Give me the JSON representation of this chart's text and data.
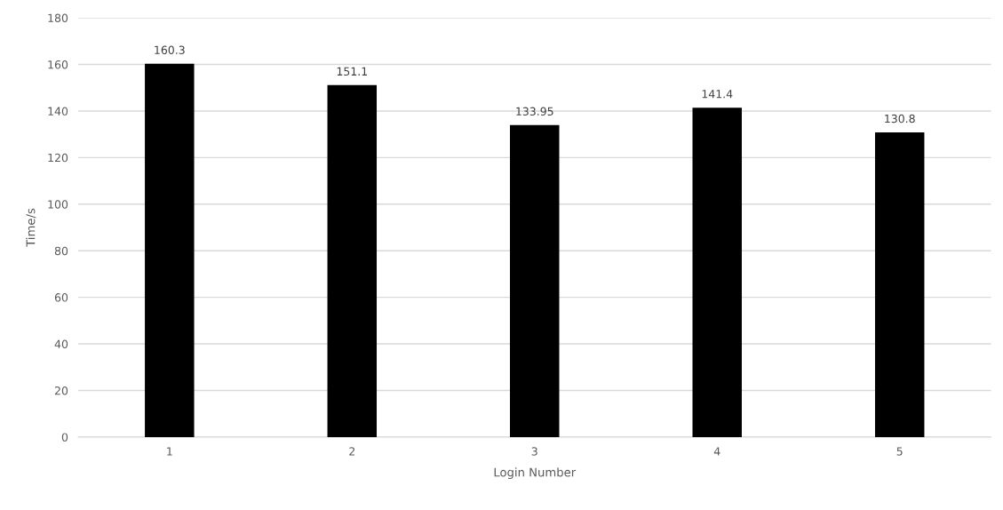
{
  "chart_data": {
    "type": "bar",
    "xlabel": "Login Number",
    "ylabel": "Time/s",
    "categories": [
      "1",
      "2",
      "3",
      "4",
      "5"
    ],
    "values": [
      160.3,
      151.1,
      133.95,
      141.4,
      130.8
    ],
    "color": "#000000",
    "ylim": [
      0,
      180
    ],
    "yticks": [
      0,
      20,
      40,
      60,
      80,
      100,
      120,
      140,
      160,
      180
    ],
    "grid": "y",
    "data_labels": true
  }
}
